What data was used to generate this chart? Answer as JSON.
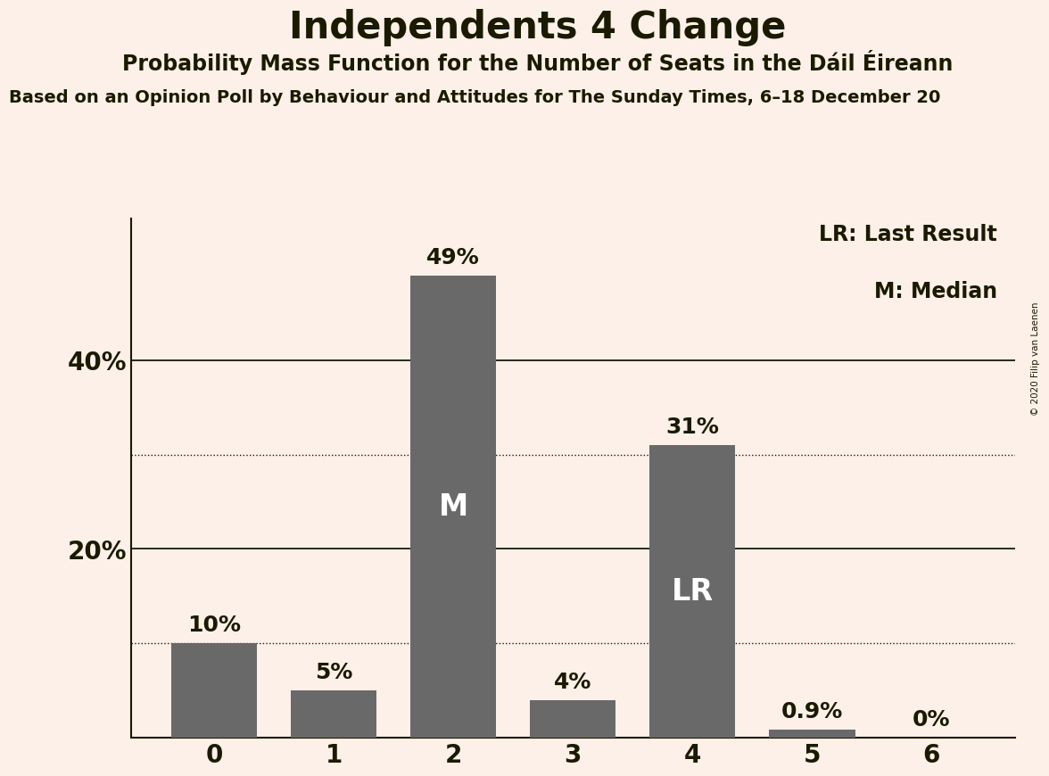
{
  "title": "Independents 4 Change",
  "subtitle": "Probability Mass Function for the Number of Seats in the Dáil Éireann",
  "subsubtitle": "Based on an Opinion Poll by Behaviour and Attitudes for The Sunday Times, 6–18 December 20",
  "copyright": "© 2020 Filip van Laenen",
  "categories": [
    0,
    1,
    2,
    3,
    4,
    5,
    6
  ],
  "values": [
    10,
    5,
    49,
    4,
    31,
    0.9,
    0
  ],
  "bar_color": "#696969",
  "background_color": "#fdf0e8",
  "text_color": "#1a1a00",
  "bar_labels": [
    "10%",
    "5%",
    "49%",
    "4%",
    "31%",
    "0.9%",
    "0%"
  ],
  "inner_labels": [
    null,
    null,
    "M",
    null,
    "LR",
    null,
    null
  ],
  "legend": [
    "LR: Last Result",
    "M: Median"
  ],
  "ylim": [
    0,
    55
  ],
  "dotted_lines": [
    10,
    30
  ],
  "solid_lines": [
    20,
    40
  ],
  "bar_width": 0.72
}
